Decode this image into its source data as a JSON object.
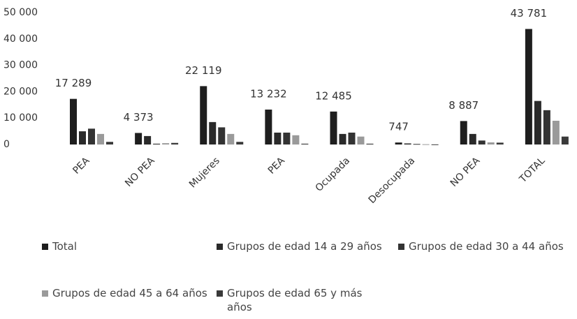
{
  "chart_data": {
    "type": "bar",
    "categories": [
      "PEA",
      "NO PEA",
      "Mujeres",
      "PEA",
      "Ocupada",
      "Desocupada",
      "NO PEA",
      "TOTAL"
    ],
    "series": [
      {
        "name": "Total",
        "color": "#1e1e1e",
        "values": [
          17289,
          4373,
          22119,
          13232,
          12485,
          747,
          8887,
          43781
        ],
        "value_labels": [
          "17 289",
          "4 373",
          "22 119",
          "13 232",
          "12 485",
          "747",
          "8 887",
          "43 781"
        ]
      },
      {
        "name": "Grupos de edad 14 a 29 años",
        "color": "#2a2a2a",
        "values": [
          5000,
          3200,
          8500,
          4500,
          4000,
          400,
          4000,
          16500
        ]
      },
      {
        "name": "Grupos de edad 30 a 44 años",
        "color": "#333333",
        "values": [
          6000,
          300,
          6500,
          4500,
          4500,
          200,
          1500,
          13000
        ]
      },
      {
        "name": "Grupos de edad 45 a 64 años",
        "color": "#9a9a9a",
        "values": [
          4000,
          500,
          4000,
          3500,
          3000,
          100,
          800,
          9000
        ]
      },
      {
        "name": "Grupos de edad 65 y más años",
        "color": "#3a3a3a",
        "values": [
          1000,
          600,
          1000,
          300,
          300,
          50,
          700,
          3000
        ]
      }
    ],
    "ylim": [
      0,
      50000
    ],
    "yticks": [
      0,
      {
        "value": 10000,
        "label": "10 000"
      },
      {
        "value": 20000,
        "label": "20 000"
      },
      {
        "value": 30000,
        "label": "30 000"
      },
      {
        "value": 40000,
        "label": "40 000"
      },
      {
        "value": 50000,
        "label": "50 000"
      }
    ],
    "grid": false
  }
}
